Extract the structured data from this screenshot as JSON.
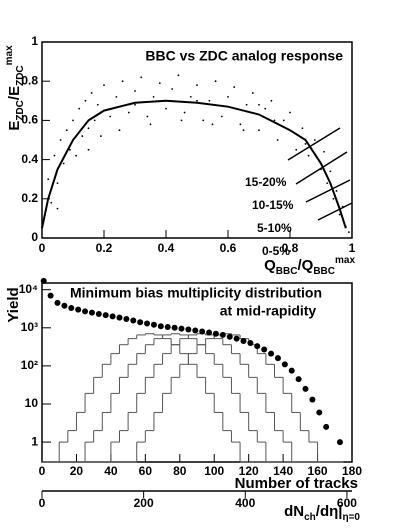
{
  "chart_data": [
    {
      "type": "scatter",
      "title": "BBC vs ZDC analog response",
      "ylabel": [
        {
          "text": "E"
        },
        {
          "text": "ZDC",
          "shift": "sub"
        },
        {
          "text": "/E"
        },
        {
          "text": "ZDC",
          "shift": "sub"
        },
        {
          "text": "max",
          "shift": "sup"
        }
      ],
      "xlabel": [
        {
          "text": "Q"
        },
        {
          "text": "BBC",
          "shift": "sub"
        },
        {
          "text": "/Q"
        },
        {
          "text": "BBC",
          "shift": "sub"
        },
        {
          "text": "max",
          "shift": "sup"
        }
      ],
      "xlim": [
        0,
        1
      ],
      "ylim": [
        0,
        1
      ],
      "xticks": [
        0,
        0.2,
        0.4,
        0.6,
        0.8,
        1
      ],
      "yticks": [
        0,
        0.2,
        0.4,
        0.6,
        0.8,
        1
      ],
      "color": "#000000",
      "x": [
        0.01,
        0.02,
        0.03,
        0.04,
        0.05,
        0.06,
        0.07,
        0.08,
        0.09,
        0.1,
        0.11,
        0.12,
        0.13,
        0.14,
        0.15,
        0.16,
        0.17,
        0.18,
        0.19,
        0.2,
        0.22,
        0.24,
        0.26,
        0.28,
        0.3,
        0.32,
        0.34,
        0.36,
        0.38,
        0.4,
        0.42,
        0.44,
        0.46,
        0.48,
        0.5,
        0.52,
        0.54,
        0.56,
        0.58,
        0.6,
        0.62,
        0.64,
        0.66,
        0.68,
        0.7,
        0.72,
        0.74,
        0.76,
        0.78,
        0.8,
        0.82,
        0.84,
        0.86,
        0.88,
        0.9,
        0.91,
        0.92,
        0.93,
        0.94,
        0.95,
        0.96,
        0.97,
        0.98,
        0.99,
        0.15,
        0.25,
        0.35,
        0.45,
        0.55,
        0.65,
        0.75,
        0.85,
        0.05,
        0.3,
        0.5,
        0.7
      ],
      "y": [
        0.12,
        0.3,
        0.18,
        0.42,
        0.28,
        0.5,
        0.38,
        0.55,
        0.45,
        0.6,
        0.42,
        0.66,
        0.52,
        0.7,
        0.56,
        0.74,
        0.6,
        0.68,
        0.52,
        0.78,
        0.62,
        0.72,
        0.8,
        0.64,
        0.75,
        0.82,
        0.62,
        0.72,
        0.79,
        0.66,
        0.76,
        0.83,
        0.64,
        0.72,
        0.78,
        0.6,
        0.7,
        0.8,
        0.62,
        0.72,
        0.77,
        0.58,
        0.68,
        0.74,
        0.55,
        0.66,
        0.7,
        0.5,
        0.6,
        0.64,
        0.45,
        0.56,
        0.42,
        0.5,
        0.35,
        0.44,
        0.28,
        0.34,
        0.2,
        0.24,
        0.12,
        0.16,
        0.06,
        0.03,
        0.45,
        0.55,
        0.58,
        0.6,
        0.58,
        0.55,
        0.6,
        0.48,
        0.15,
        0.68,
        0.7,
        0.68
      ],
      "curve": {
        "x": [
          0,
          0.02,
          0.05,
          0.1,
          0.15,
          0.2,
          0.3,
          0.4,
          0.5,
          0.6,
          0.7,
          0.8,
          0.85,
          0.9,
          0.93,
          0.96,
          0.98
        ],
        "y": [
          0.05,
          0.2,
          0.35,
          0.5,
          0.6,
          0.65,
          0.69,
          0.7,
          0.69,
          0.67,
          0.63,
          0.55,
          0.5,
          0.38,
          0.28,
          0.15,
          0.05
        ]
      },
      "annotations": [
        "15-20%",
        "10-15%",
        "5-10%",
        "0-5%"
      ]
    },
    {
      "type": "histogram",
      "title": "Minimum bias multiplicity distribution",
      "subtitle": "at mid-rapidity",
      "ylabel": "Yield",
      "xlabel": "Number of tracks",
      "x2label": [
        {
          "text": "dN"
        },
        {
          "text": "ch",
          "shift": "sub"
        },
        {
          "text": "/dη|"
        },
        {
          "text": "η=0",
          "shift": "sub"
        }
      ],
      "log_y": true,
      "xlim": [
        0,
        180
      ],
      "ylim": [
        0.3,
        15000
      ],
      "xticks": [
        0,
        20,
        40,
        60,
        80,
        100,
        120,
        140,
        160,
        180
      ],
      "yticks": [
        1,
        10,
        {
          "value": 100,
          "label": "10²"
        },
        {
          "value": 1000,
          "label": "10³"
        },
        {
          "value": 10000,
          "label": "10⁴"
        }
      ],
      "x2lim": [
        0,
        610
      ],
      "x2ticks": [
        0,
        200,
        400,
        600
      ],
      "color": "#555555",
      "bins": [
        0,
        5,
        10,
        15,
        20,
        25,
        30,
        35,
        40,
        45,
        50,
        55,
        60,
        65,
        70,
        75,
        80,
        85,
        90,
        95,
        100,
        105,
        110,
        115,
        120,
        125,
        130,
        135,
        140,
        145,
        150,
        155,
        160,
        165,
        170,
        175
      ],
      "series": [
        {
          "values": [
            0,
            0,
            1,
            2,
            6,
            19,
            50,
            110,
            210,
            360,
            520,
            650,
            700,
            650,
            520,
            360,
            210,
            110,
            50,
            19,
            6,
            2,
            1,
            0,
            0,
            0,
            0,
            0,
            0,
            0,
            0,
            0,
            0,
            0,
            0
          ]
        },
        {
          "values": [
            0,
            0,
            0,
            0,
            0,
            1,
            2,
            6,
            19,
            50,
            110,
            210,
            360,
            520,
            650,
            700,
            650,
            520,
            360,
            210,
            110,
            50,
            19,
            6,
            2,
            1,
            0,
            0,
            0,
            0,
            0,
            0,
            0,
            0,
            0
          ]
        },
        {
          "values": [
            0,
            0,
            0,
            0,
            0,
            0,
            0,
            0,
            1,
            2,
            6,
            19,
            50,
            110,
            210,
            360,
            520,
            650,
            700,
            650,
            520,
            360,
            210,
            110,
            50,
            19,
            6,
            2,
            1,
            0,
            0,
            0,
            0,
            0,
            0
          ]
        },
        {
          "values": [
            0,
            0,
            0,
            0,
            0,
            0,
            0,
            0,
            0,
            0,
            0,
            1,
            2,
            6,
            19,
            50,
            110,
            210,
            360,
            520,
            650,
            700,
            650,
            520,
            360,
            210,
            110,
            50,
            19,
            6,
            2,
            1,
            0,
            0,
            0
          ]
        }
      ],
      "points": {
        "color": "#000000",
        "x": [
          1,
          5,
          9,
          13,
          17,
          21,
          25,
          29,
          33,
          37,
          41,
          45,
          49,
          53,
          57,
          61,
          65,
          69,
          73,
          77,
          81,
          85,
          89,
          93,
          97,
          101,
          105,
          109,
          113,
          117,
          121,
          125,
          129,
          133,
          137,
          141,
          145,
          149,
          153,
          157,
          161,
          165,
          173
        ],
        "y": [
          17000,
          7000,
          4500,
          3800,
          3300,
          3000,
          2700,
          2500,
          2300,
          2150,
          2000,
          1850,
          1700,
          1550,
          1400,
          1300,
          1200,
          1100,
          1050,
          1000,
          950,
          900,
          850,
          800,
          750,
          700,
          650,
          580,
          520,
          450,
          400,
          330,
          270,
          210,
          160,
          110,
          75,
          45,
          25,
          13,
          6,
          2.5,
          1
        ]
      }
    }
  ]
}
